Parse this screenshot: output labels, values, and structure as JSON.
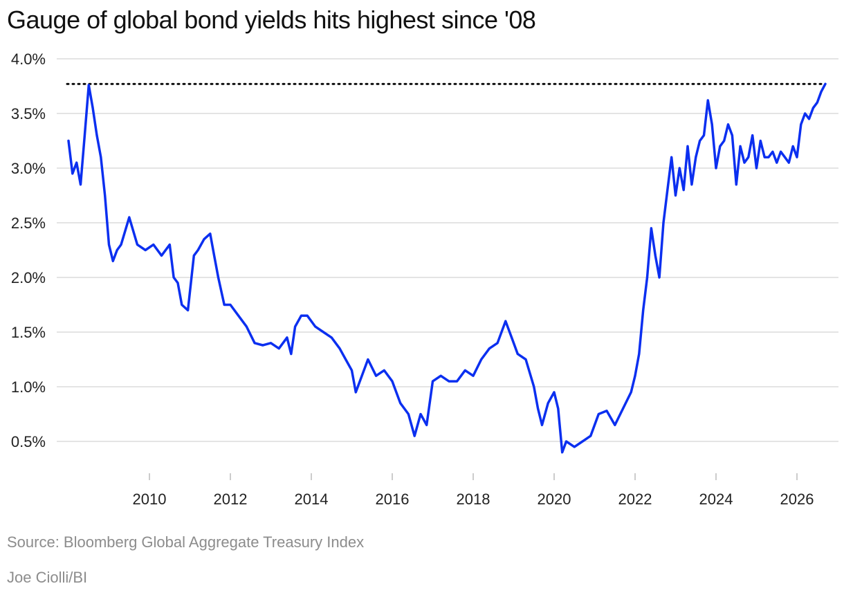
{
  "title": "Gauge of global bond yields hits highest since '08",
  "source": "Source: Bloomberg Global Aggregate Treasury Index",
  "credit": "Joe Ciolli/BI",
  "chart_data": {
    "type": "line",
    "title": "Gauge of global bond yields hits highest since '08",
    "xlabel": "",
    "ylabel": "",
    "xlim": [
      2007.8,
      2026.8
    ],
    "ylim": [
      0.3,
      4.0
    ],
    "y_ticks": [
      0.5,
      1.0,
      1.5,
      2.0,
      2.5,
      3.0,
      3.5,
      4.0
    ],
    "y_tick_labels": [
      "0.5%",
      "1.0%",
      "1.5%",
      "2.0%",
      "2.5%",
      "3.0%",
      "3.5%",
      "4.0%"
    ],
    "x_ticks": [
      2010,
      2012,
      2014,
      2016,
      2018,
      2020,
      2022,
      2024,
      2026
    ],
    "x_tick_labels": [
      "2010",
      "2012",
      "2014",
      "2016",
      "2018",
      "2020",
      "2022",
      "2024",
      "2026"
    ],
    "grid": "horizontal",
    "line_color": "#0b2ff0",
    "reference_line": {
      "y": 3.77,
      "style": "dotted",
      "color": "#111111"
    },
    "series": [
      {
        "values_x": [
          2008.0,
          2008.1,
          2008.2,
          2008.3,
          2008.4,
          2008.5,
          2008.6,
          2008.7,
          2008.8,
          2008.9,
          2009.0,
          2009.1,
          2009.2,
          2009.3,
          2009.5,
          2009.7,
          2009.9,
          2010.1,
          2010.3,
          2010.5,
          2010.6,
          2010.7,
          2010.8,
          2010.95,
          2011.1,
          2011.2,
          2011.35,
          2011.5,
          2011.6,
          2011.7,
          2011.85,
          2012.0,
          2012.2,
          2012.4,
          2012.6,
          2012.8,
          2013.0,
          2013.2,
          2013.4,
          2013.5,
          2013.6,
          2013.75,
          2013.9,
          2014.1,
          2014.3,
          2014.5,
          2014.7,
          2014.85,
          2015.0,
          2015.1,
          2015.25,
          2015.4,
          2015.6,
          2015.8,
          2016.0,
          2016.2,
          2016.4,
          2016.55,
          2016.7,
          2016.85,
          2017.0,
          2017.2,
          2017.4,
          2017.6,
          2017.8,
          2018.0,
          2018.2,
          2018.4,
          2018.6,
          2018.8,
          2018.95,
          2019.1,
          2019.3,
          2019.5,
          2019.6,
          2019.7,
          2019.85,
          2020.0,
          2020.1,
          2020.2,
          2020.3,
          2020.5,
          2020.7,
          2020.9,
          2021.1,
          2021.3,
          2021.5,
          2021.7,
          2021.9,
          2022.0,
          2022.1,
          2022.2,
          2022.3,
          2022.4,
          2022.5,
          2022.6,
          2022.7,
          2022.8,
          2022.9,
          2023.0,
          2023.1,
          2023.2,
          2023.3,
          2023.4,
          2023.5,
          2023.6,
          2023.7,
          2023.8,
          2023.9,
          2024.0,
          2024.1,
          2024.2,
          2024.3,
          2024.4,
          2024.5,
          2024.6,
          2024.7,
          2024.8,
          2024.9,
          2025.0,
          2025.1,
          2025.2,
          2025.3,
          2025.4,
          2025.5,
          2025.6,
          2025.7,
          2025.8,
          2025.9,
          2026.0,
          2026.1,
          2026.2,
          2026.3,
          2026.4,
          2026.5,
          2026.6,
          2026.7
        ],
        "values": [
          3.25,
          2.95,
          3.05,
          2.85,
          3.3,
          3.76,
          3.55,
          3.3,
          3.1,
          2.75,
          2.3,
          2.15,
          2.25,
          2.3,
          2.55,
          2.3,
          2.25,
          2.3,
          2.2,
          2.3,
          2.0,
          1.95,
          1.75,
          1.7,
          2.2,
          2.25,
          2.35,
          2.4,
          2.2,
          2.0,
          1.75,
          1.75,
          1.65,
          1.55,
          1.4,
          1.38,
          1.4,
          1.35,
          1.45,
          1.3,
          1.55,
          1.65,
          1.65,
          1.55,
          1.5,
          1.45,
          1.35,
          1.25,
          1.15,
          0.95,
          1.1,
          1.25,
          1.1,
          1.15,
          1.05,
          0.85,
          0.75,
          0.55,
          0.75,
          0.65,
          1.05,
          1.1,
          1.05,
          1.05,
          1.15,
          1.1,
          1.25,
          1.35,
          1.4,
          1.6,
          1.45,
          1.3,
          1.25,
          1.0,
          0.8,
          0.65,
          0.85,
          0.95,
          0.8,
          0.4,
          0.5,
          0.45,
          0.5,
          0.55,
          0.75,
          0.78,
          0.65,
          0.8,
          0.95,
          1.1,
          1.3,
          1.7,
          2.0,
          2.45,
          2.2,
          2.0,
          2.5,
          2.8,
          3.1,
          2.75,
          3.0,
          2.8,
          3.2,
          2.85,
          3.1,
          3.25,
          3.3,
          3.62,
          3.4,
          3.0,
          3.2,
          3.25,
          3.4,
          3.3,
          2.85,
          3.2,
          3.05,
          3.1,
          3.3,
          3.0,
          3.25,
          3.1,
          3.1,
          3.15,
          3.05,
          3.15,
          3.1,
          3.05,
          3.2,
          3.1,
          3.4,
          3.5,
          3.45,
          3.55,
          3.6,
          3.7,
          3.77
        ]
      }
    ]
  }
}
